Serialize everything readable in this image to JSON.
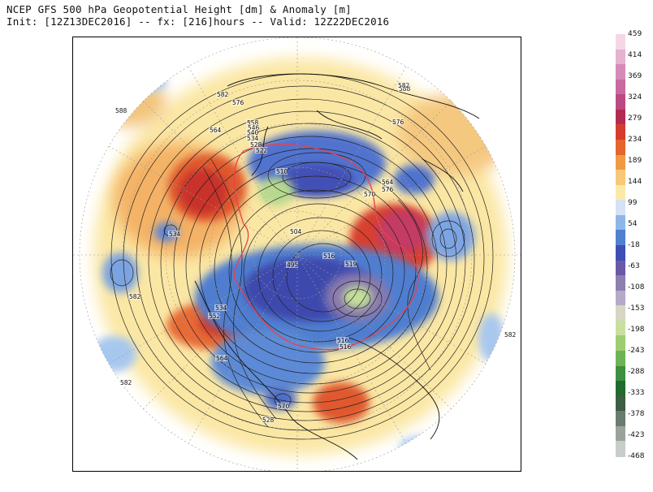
{
  "header": {
    "line1": "NCEP GFS 500 hPa Geopotential Height [dm] & Anomaly [m]",
    "line2": "Init: [12Z13DEC2016] -- fx: [216]hours -- Valid: 12Z22DEC2016"
  },
  "colorbar": {
    "labels": [
      "459",
      "414",
      "369",
      "324",
      "279",
      "234",
      "189",
      "144",
      "99",
      "54",
      "-18",
      "-63",
      "-108",
      "-153",
      "-198",
      "-243",
      "-288",
      "-333",
      "-378",
      "-423",
      "-468"
    ],
    "colors": [
      "#f4d7e6",
      "#e5b2cf",
      "#d68bb7",
      "#c86aa0",
      "#bb4a84",
      "#b32b55",
      "#d63c2e",
      "#e5652f",
      "#f19a44",
      "#f8c878",
      "#fbe9a8",
      "#d5e2f5",
      "#8fb6ea",
      "#4f81cf",
      "#3e4fb4",
      "#6a5aa6",
      "#8f7fb1",
      "#b5aac8",
      "#d6d6c2",
      "#c8e09e",
      "#9fcd72",
      "#6eb457",
      "#3e8f3f",
      "#226b2e",
      "#3f5c44",
      "#6a7c6d",
      "#9aa39b",
      "#c9cdca"
    ]
  },
  "map": {
    "height_labels": [
      "588",
      "582",
      "576",
      "564",
      "558",
      "546",
      "540",
      "534",
      "528",
      "522",
      "510",
      "504",
      "495",
      "516",
      "519",
      "570",
      "576",
      "564",
      "588",
      "576",
      "534",
      "582",
      "582",
      "570",
      "528",
      "582",
      "564",
      "534",
      "552",
      "516",
      "516",
      "582"
    ]
  }
}
